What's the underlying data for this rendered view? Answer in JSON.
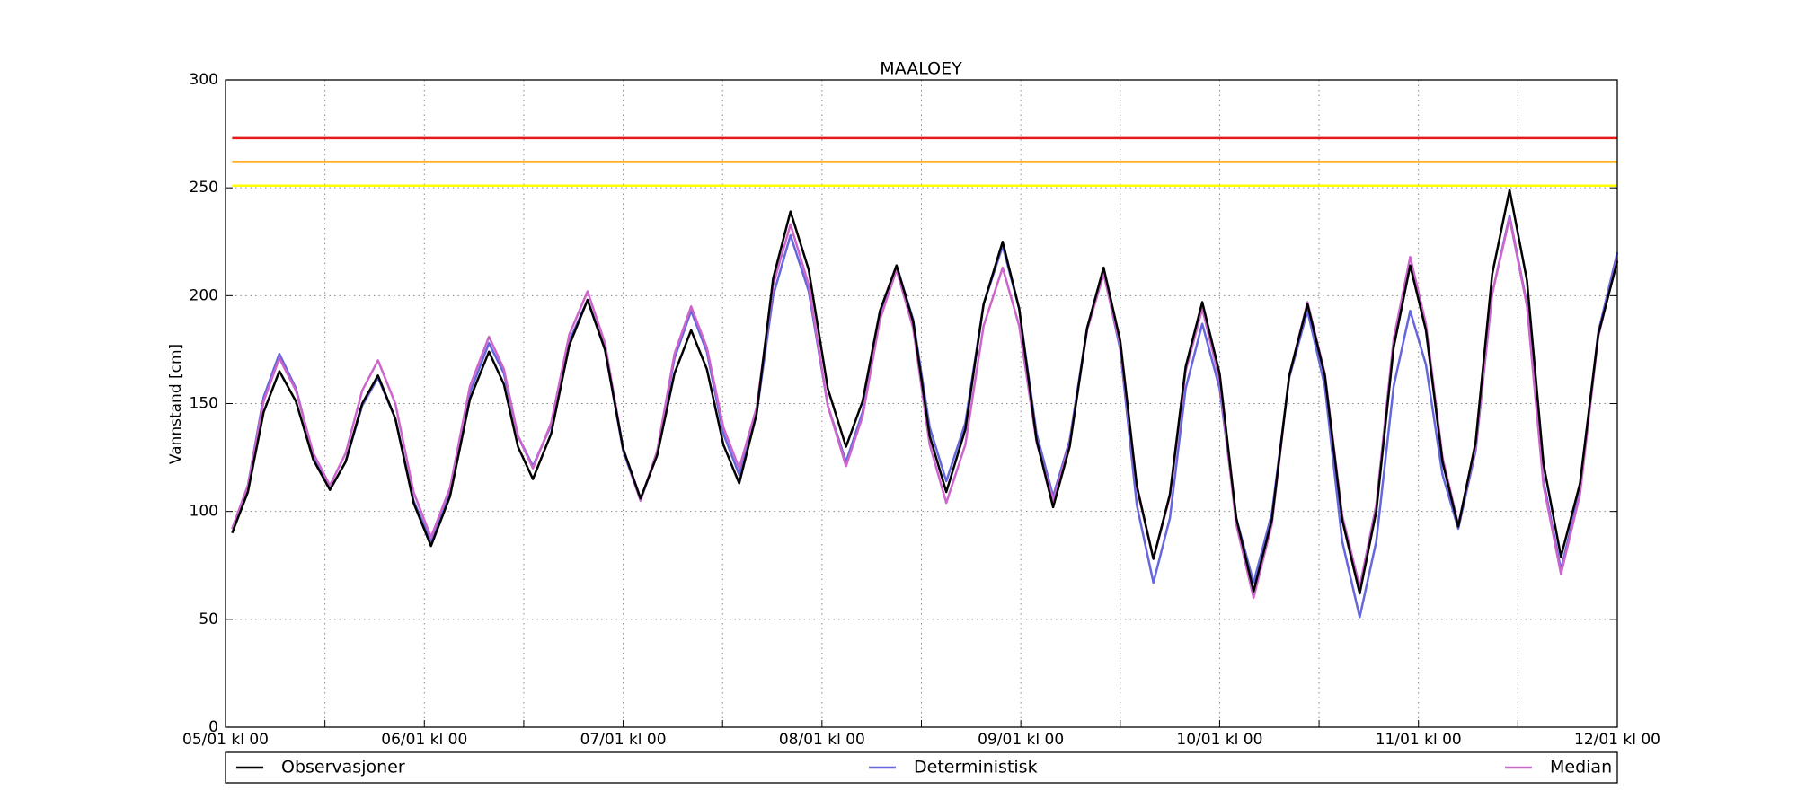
{
  "chart_data": {
    "type": "line",
    "title": "MAALOEY",
    "y_label": "Vannstand [cm]",
    "xlim": [
      0,
      168
    ],
    "ylim": [
      0,
      300
    ],
    "xticks": [
      {
        "value": 0,
        "label": "05/01 kl 00"
      },
      {
        "value": 24,
        "label": "06/01 kl 00"
      },
      {
        "value": 48,
        "label": "07/01 kl 00"
      },
      {
        "value": 72,
        "label": "08/01 kl 00"
      },
      {
        "value": 96,
        "label": "09/01 kl 00"
      },
      {
        "value": 120,
        "label": "10/01 kl 00"
      },
      {
        "value": 144,
        "label": "11/01 kl 00"
      },
      {
        "value": 168,
        "label": "12/01 kl 00"
      }
    ],
    "x_minor_ticks": [
      12,
      36,
      60,
      84,
      108,
      132,
      156
    ],
    "yticks": [
      0,
      50,
      100,
      150,
      200,
      250,
      300
    ],
    "grid": true,
    "legend": "below",
    "thresholds": [
      {
        "value": 273,
        "color": "#e41a1c"
      },
      {
        "value": 262,
        "color": "#ffa500"
      },
      {
        "value": 251,
        "color": "#ffff00"
      }
    ],
    "x": [
      0.8,
      2.7,
      4.6,
      6.5,
      8.5,
      10.6,
      12.6,
      14.5,
      16.5,
      18.4,
      20.5,
      22.7,
      24.8,
      27.1,
      29.5,
      31.8,
      33.6,
      35.3,
      37.1,
      39.3,
      41.5,
      43.7,
      45.8,
      48,
      50.1,
      52.1,
      54.2,
      56.2,
      58.1,
      60.1,
      62,
      64.1,
      66.1,
      68.2,
      70.4,
      72.7,
      74.9,
      76.9,
      79,
      81,
      83,
      85,
      87,
      89.3,
      91.5,
      93.8,
      95.8,
      97.9,
      99.9,
      101.9,
      104,
      106,
      108,
      110,
      112,
      114,
      115.9,
      117.9,
      120,
      122,
      124.1,
      126.3,
      128.4,
      130.6,
      132.7,
      134.8,
      136.9,
      138.9,
      141,
      143,
      144.9,
      146.9,
      148.8,
      150.9,
      152.9,
      155,
      157.1,
      159.1,
      161.2,
      163.5,
      165.7,
      168
    ],
    "series": [
      {
        "name": "Deterministisk",
        "color": "#6666dd",
        "values": [
          92,
          112,
          153,
          173,
          157,
          126,
          110,
          123,
          149,
          162,
          143,
          105,
          86,
          109,
          155,
          178,
          164,
          135,
          121,
          140,
          179,
          198,
          175,
          128,
          105,
          127,
          171,
          193,
          174,
          136,
          117,
          145,
          200,
          228,
          202,
          149,
          123,
          146,
          191,
          214,
          189,
          139,
          114,
          141,
          196,
          223,
          194,
          136,
          107,
          133,
          185,
          211,
          175,
          103,
          67,
          97,
          157,
          187,
          157,
          97,
          67,
          99,
          162,
          193,
          158,
          86,
          51,
          86,
          158,
          193,
          168,
          117,
          92,
          128,
          201,
          237,
          196,
          114,
          73,
          110,
          183,
          220
        ]
      },
      {
        "name": "Median",
        "color": "#cc66cc",
        "values": [
          92,
          112,
          151,
          171,
          156,
          127,
          112,
          127,
          156,
          170,
          150,
          109,
          88,
          111,
          158,
          181,
          166,
          135,
          120,
          141,
          182,
          202,
          178,
          129,
          105,
          128,
          173,
          195,
          176,
          139,
          120,
          148,
          205,
          233,
          205,
          149,
          121,
          144,
          189,
          212,
          185,
          131,
          104,
          131,
          186,
          213,
          186,
          132,
          105,
          131,
          184,
          210,
          177,
          111,
          78,
          107,
          165,
          194,
          161,
          94,
          60,
          94,
          163,
          197,
          164,
          98,
          65,
          103,
          180,
          218,
          187,
          125,
          94,
          130,
          201,
          236,
          195,
          112,
          71,
          108,
          181,
          217
        ]
      },
      {
        "name": "Observasjoner",
        "color": "#000000",
        "values": [
          90,
          109,
          146,
          165,
          151,
          124,
          110,
          123,
          150,
          163,
          143,
          104,
          84,
          107,
          152,
          174,
          159,
          130,
          115,
          136,
          177,
          198,
          175,
          129,
          106,
          126,
          164,
          184,
          166,
          131,
          113,
          145,
          208,
          239,
          212,
          157,
          130,
          151,
          193,
          214,
          188,
          135,
          109,
          138,
          196,
          225,
          194,
          133,
          102,
          130,
          185,
          213,
          179,
          112,
          78,
          108,
          167,
          197,
          164,
          97,
          63,
          96,
          163,
          196,
          163,
          96,
          62,
          100,
          176,
          214,
          184,
          123,
          93,
          132,
          210,
          249,
          207,
          122,
          79,
          113,
          182,
          216
        ]
      }
    ],
    "legend_order": [
      2,
      0,
      1
    ]
  }
}
